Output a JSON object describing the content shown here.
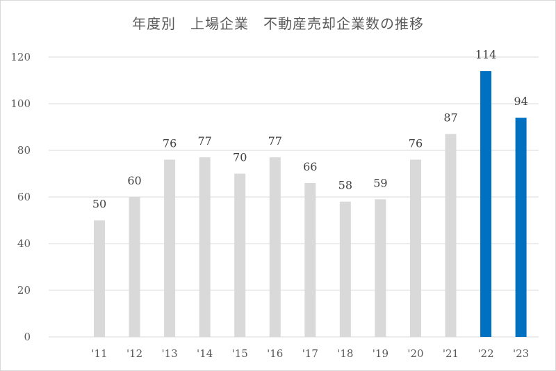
{
  "chart_data": {
    "type": "bar",
    "title": "年度別　上場企業　不動産売却企業数の推移",
    "categories": [
      "'11",
      "'12",
      "'13",
      "'14",
      "'15",
      "'16",
      "'17",
      "'18",
      "'19",
      "'20",
      "'21",
      "'22",
      "'23"
    ],
    "values": [
      50,
      60,
      76,
      77,
      70,
      77,
      66,
      58,
      59,
      76,
      87,
      114,
      94
    ],
    "data_labels": [
      "50",
      "60",
      "76",
      "77",
      "70",
      "77",
      "66",
      "58",
      "59",
      "76",
      "87",
      "114",
      "94"
    ],
    "yticks": [
      "0",
      "20",
      "40",
      "60",
      "80",
      "100",
      "120"
    ],
    "ylim": [
      0,
      120
    ],
    "grid": true,
    "colors": {
      "default_bar": "#d9d9d9",
      "highlight_bar": "#0070c0",
      "grid": "#d9d9d9"
    },
    "highlighted_categories": [
      "'22",
      "'23"
    ]
  }
}
